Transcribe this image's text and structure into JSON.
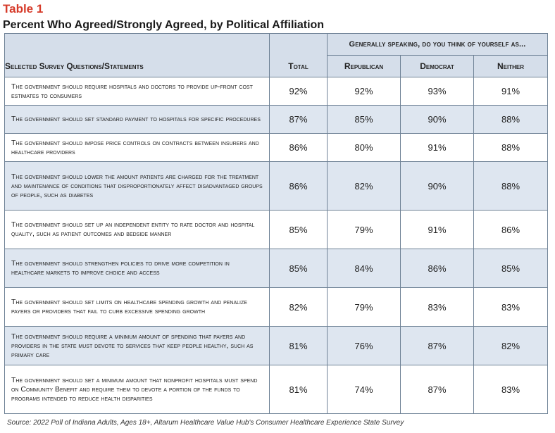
{
  "table_label": "Table 1",
  "title": "Percent Who Agreed/Strongly Agreed, by Political Affiliation",
  "group_header": "Generally speaking, do you think of yourself as...",
  "columns": {
    "question": "Selected Survey Questions/Statements",
    "total": "Total",
    "republican": "Republican",
    "democrat": "Democrat",
    "neither": "Neither"
  },
  "rows": [
    {
      "q": "The government should require hospitals and doctors to provide up-front cost estimates to consumers",
      "total": "92%",
      "rep": "92%",
      "dem": "93%",
      "nei": "91%"
    },
    {
      "q": "The government should set standard payment to hospitals for specific procedures",
      "total": "87%",
      "rep": "85%",
      "dem": "90%",
      "nei": "88%"
    },
    {
      "q": "The government should impose price controls on contracts between insurers and healthcare providers",
      "total": "86%",
      "rep": "80%",
      "dem": "91%",
      "nei": "88%"
    },
    {
      "q": "The government should lower the amount patients are charged for the treatment and maintenance of conditions that disproportionately affect disadvantaged groups of people, such as diabetes",
      "total": "86%",
      "rep": "82%",
      "dem": "90%",
      "nei": "88%"
    },
    {
      "q": "The government should set up an independent entity to rate doctor and hospital quality, such as patient outcomes and bedside manner",
      "total": "85%",
      "rep": "79%",
      "dem": "91%",
      "nei": "86%"
    },
    {
      "q": "The government should strengthen policies to drive more competition in healthcare markets to improve choice and access",
      "total": "85%",
      "rep": "84%",
      "dem": "86%",
      "nei": "85%"
    },
    {
      "q": "The government should set limits on healthcare spending growth and penalize payers or providers that fail to curb excessive spending growth",
      "total": "82%",
      "rep": "79%",
      "dem": "83%",
      "nei": "83%"
    },
    {
      "q": "The government should require a minimum amount of spending that payers and providers in the state must devote to services that keep people healthy, such as primary care",
      "total": "81%",
      "rep": "76%",
      "dem": "87%",
      "nei": "82%"
    },
    {
      "q": "The government should set a minimum amount that nonprofit hospitals must spend on Community Benefit and require them to devote a portion of the funds to programs intended to reduce health disparities",
      "total": "81%",
      "rep": "74%",
      "dem": "87%",
      "nei": "83%"
    }
  ],
  "source": "Source: 2022 Poll of Indiana Adults, Ages 18+, Altarum Healthcare Value Hub's Consumer Healthcare Experience State Survey"
}
